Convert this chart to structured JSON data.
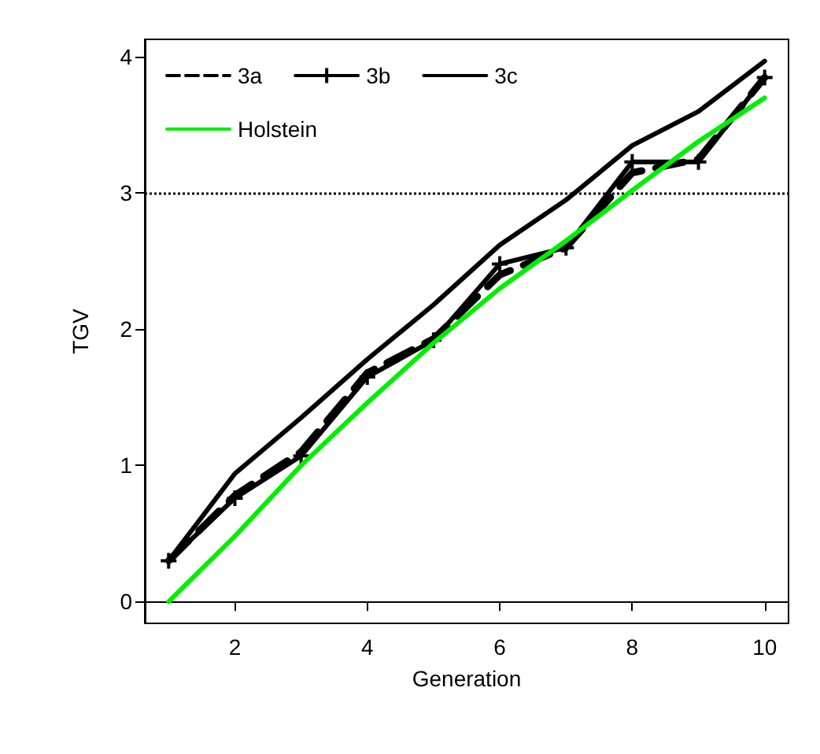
{
  "chart_data": {
    "type": "line",
    "xlabel": "Generation",
    "ylabel": "TGV",
    "x": [
      1,
      2,
      3,
      4,
      5,
      6,
      7,
      8,
      9,
      10
    ],
    "xlim": [
      0.64,
      10.36
    ],
    "ylim": [
      -0.16,
      4.13
    ],
    "xticks": [
      2,
      4,
      6,
      8,
      10
    ],
    "yticks": [
      0,
      1,
      2,
      3,
      4
    ],
    "grid": false,
    "legend": "top left",
    "series": [
      {
        "name": "3a",
        "color": "#000000",
        "line_style": "dashed",
        "marker": "none",
        "values": [
          0.3,
          0.78,
          1.1,
          1.68,
          1.93,
          2.4,
          2.6,
          3.15,
          3.25,
          3.85
        ]
      },
      {
        "name": "3b",
        "color": "#000000",
        "line_style": "solid",
        "marker": "cross",
        "values": [
          0.3,
          0.76,
          1.07,
          1.65,
          1.92,
          2.48,
          2.6,
          3.23,
          3.23,
          3.85
        ]
      },
      {
        "name": "3c",
        "color": "#000000",
        "line_style": "solid",
        "marker": "none",
        "values": [
          0.3,
          0.94,
          1.35,
          1.78,
          2.18,
          2.62,
          2.95,
          3.35,
          3.6,
          3.97
        ]
      },
      {
        "name": "Holstein",
        "color": "#00ee00",
        "line_style": "solid",
        "marker": "none",
        "values": [
          0,
          0.48,
          1.0,
          1.46,
          1.9,
          2.3,
          2.65,
          3.02,
          3.38,
          3.7
        ]
      }
    ],
    "ref_lines": [
      {
        "axis": "y",
        "value": 3,
        "line_style": "dotted",
        "color": "#000000"
      }
    ]
  }
}
